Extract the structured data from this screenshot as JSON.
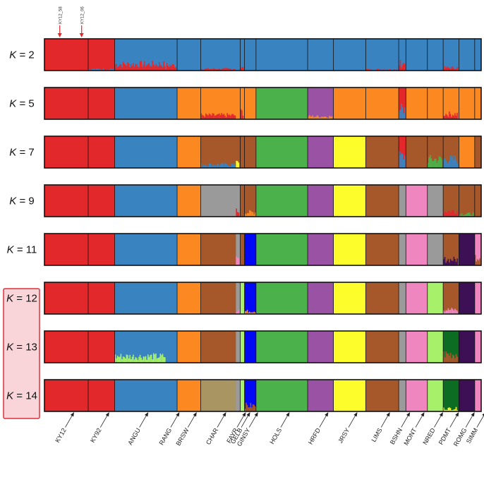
{
  "chart_data": {
    "type": "structure-admixture-barplot",
    "title": "",
    "k_prefix": "K",
    "k_values": [
      2,
      5,
      7,
      9,
      11,
      12,
      13,
      14
    ],
    "highlighted_k": [
      12,
      13,
      14
    ],
    "highlighted_k_color": "#e0303a",
    "highlighted_k_fill": "#f9d5da",
    "marked_samples": [
      {
        "label": "KY12_58",
        "breed": "KY12",
        "position": 0.35
      },
      {
        "label": "KY12_06",
        "breed": "KY12",
        "position": 0.85
      }
    ],
    "breeds": [
      {
        "code": "KY12",
        "n": 6.1,
        "separator": true
      },
      {
        "code": "KY92",
        "n": 3.7,
        "separator": true
      },
      {
        "code": "ANGU",
        "n": 7.2,
        "separator": false
      },
      {
        "code": "RANG",
        "n": 1.5,
        "separator": true
      },
      {
        "code": "BRSW",
        "n": 3.3,
        "separator": true
      },
      {
        "code": "CHAR",
        "n": 4.9,
        "separator": false
      },
      {
        "code": "FAYR",
        "n": 0.6,
        "separator": true
      },
      {
        "code": "GELB",
        "n": 0.6,
        "separator": true
      },
      {
        "code": "GINSY",
        "n": 1.6,
        "separator": true
      },
      {
        "code": "HOLS",
        "n": 7.2,
        "separator": true
      },
      {
        "code": "HRFD",
        "n": 3.6,
        "separator": true
      },
      {
        "code": "JRSY",
        "n": 4.5,
        "separator": true
      },
      {
        "code": "LIMS",
        "n": 4.6,
        "separator": true
      },
      {
        "code": "BSHN",
        "n": 1.0,
        "separator": true
      },
      {
        "code": "MONT",
        "n": 3.0,
        "separator": true
      },
      {
        "code": "NRED",
        "n": 2.2,
        "separator": true
      },
      {
        "code": "PDMT",
        "n": 2.2,
        "separator": true
      },
      {
        "code": "ROMG",
        "n": 2.2,
        "separator": true
      },
      {
        "code": "SIMM",
        "n": 0.9,
        "separator": false
      }
    ],
    "palette": {
      "red": "#e3282c",
      "blue": "#3a83c1",
      "orange": "#fb8820",
      "brown": "#a7582a",
      "green": "#4bb14b",
      "purple": "#9a52a4",
      "yellow": "#fdfd2b",
      "grey": "#9a9a9a",
      "pink": "#f086c0",
      "lime": "#a6f06a",
      "darkpurple": "#3d0f55",
      "deepblue": "#0008f5",
      "darkgreen": "#0c6d22",
      "khaki": "#a99562"
    },
    "assignments": {
      "2": [
        "red",
        "red",
        "blue",
        "blue",
        "blue",
        "blue",
        "blue",
        "blue",
        "blue",
        "blue",
        "blue",
        "blue",
        "blue",
        "blue",
        "blue",
        "blue",
        "blue",
        "blue",
        "blue"
      ],
      "5": [
        "red",
        "red",
        "blue",
        "blue",
        "orange",
        "orange",
        "orange",
        "orange",
        "orange",
        "green",
        "purple",
        "orange",
        "orange",
        "red",
        "orange",
        "orange",
        "orange",
        "orange",
        "orange"
      ],
      "7": [
        "red",
        "red",
        "blue",
        "blue",
        "orange",
        "brown",
        "brown",
        "brown",
        "brown",
        "green",
        "purple",
        "yellow",
        "brown",
        "red",
        "brown",
        "brown",
        "brown",
        "orange",
        "brown"
      ],
      "9": [
        "red",
        "red",
        "blue",
        "blue",
        "orange",
        "grey",
        "grey",
        "brown",
        "brown",
        "green",
        "purple",
        "yellow",
        "brown",
        "grey",
        "pink",
        "grey",
        "brown",
        "brown",
        "brown"
      ],
      "11": [
        "red",
        "red",
        "blue",
        "blue",
        "orange",
        "brown",
        "grey",
        "brown",
        "deepblue",
        "green",
        "purple",
        "yellow",
        "brown",
        "grey",
        "pink",
        "grey",
        "brown",
        "darkpurple",
        "pink"
      ],
      "12": [
        "red",
        "red",
        "blue",
        "blue",
        "orange",
        "brown",
        "grey",
        "lime",
        "deepblue",
        "green",
        "purple",
        "yellow",
        "brown",
        "grey",
        "pink",
        "lime",
        "brown",
        "darkpurple",
        "pink"
      ],
      "13": [
        "red",
        "red",
        "blue",
        "blue",
        "orange",
        "brown",
        "grey",
        "lime",
        "deepblue",
        "green",
        "purple",
        "yellow",
        "brown",
        "grey",
        "pink",
        "lime",
        "darkgreen",
        "darkpurple",
        "pink"
      ],
      "14": [
        "red",
        "red",
        "blue",
        "blue",
        "orange",
        "khaki",
        "grey",
        "lime",
        "deepblue",
        "green",
        "purple",
        "yellow",
        "brown",
        "grey",
        "pink",
        "lime",
        "darkgreen",
        "darkpurple",
        "pink"
      ]
    },
    "admixture": {
      "2": [
        {
          "breed": "ANGU",
          "color": "red",
          "fraction": 0.22
        },
        {
          "breed": "RANG",
          "color": "red",
          "fraction": 0.18
        },
        {
          "breed": "CHAR",
          "color": "red",
          "fraction": 0.06
        },
        {
          "breed": "GELB",
          "color": "red",
          "fraction": 0.1
        },
        {
          "breed": "BSHN",
          "color": "red",
          "fraction": 0.25
        },
        {
          "breed": "PDMT",
          "color": "red",
          "fraction": 0.1
        },
        {
          "breed": "LIMS",
          "color": "red",
          "fraction": 0.04
        },
        {
          "breed": "KY92",
          "color": "blue",
          "fraction": 0.05
        }
      ],
      "5": [
        {
          "breed": "CHAR",
          "color": "red",
          "fraction": 0.14
        },
        {
          "breed": "GELB",
          "color": "red",
          "fraction": 0.25
        },
        {
          "breed": "BSHN",
          "color": "blue",
          "fraction": 0.35
        },
        {
          "breed": "PDMT",
          "color": "red",
          "fraction": 0.18
        },
        {
          "breed": "HRFD",
          "color": "orange",
          "fraction": 0.1
        }
      ],
      "7": [
        {
          "breed": "CHAR",
          "color": "blue",
          "fraction": 0.12
        },
        {
          "breed": "FAYR",
          "color": "yellow",
          "fraction": 0.3
        },
        {
          "breed": "BSHN",
          "color": "blue",
          "fraction": 0.4
        },
        {
          "breed": "NRED",
          "color": "green",
          "fraction": 0.3
        },
        {
          "breed": "PDMT",
          "color": "blue",
          "fraction": 0.3
        }
      ],
      "9": [
        {
          "breed": "FAYR",
          "color": "red",
          "fraction": 0.2
        },
        {
          "breed": "GINSY",
          "color": "orange",
          "fraction": 0.15
        },
        {
          "breed": "PDMT",
          "color": "red",
          "fraction": 0.2
        },
        {
          "breed": "ROMG",
          "color": "green",
          "fraction": 0.1
        }
      ],
      "11": [
        {
          "breed": "FAYR",
          "color": "pink",
          "fraction": 0.2
        },
        {
          "breed": "PDMT",
          "color": "darkpurple",
          "fraction": 0.2
        },
        {
          "breed": "SIMM",
          "color": "brown",
          "fraction": 0.3
        }
      ],
      "12": [
        {
          "breed": "FAYR",
          "color": "pink",
          "fraction": 0.15
        },
        {
          "breed": "GINSY",
          "color": "orange",
          "fraction": 0.1
        },
        {
          "breed": "PDMT",
          "color": "pink",
          "fraction": 0.15
        }
      ],
      "13": [
        {
          "breed": "ANGU",
          "color": "lime",
          "fraction": 0.22
        },
        {
          "breed": "PDMT",
          "color": "brown",
          "fraction": 0.3
        }
      ],
      "14": [
        {
          "breed": "GINSY",
          "color": "brown",
          "fraction": 0.2
        },
        {
          "breed": "PDMT",
          "color": "yellow",
          "fraction": 0.1
        }
      ]
    }
  }
}
